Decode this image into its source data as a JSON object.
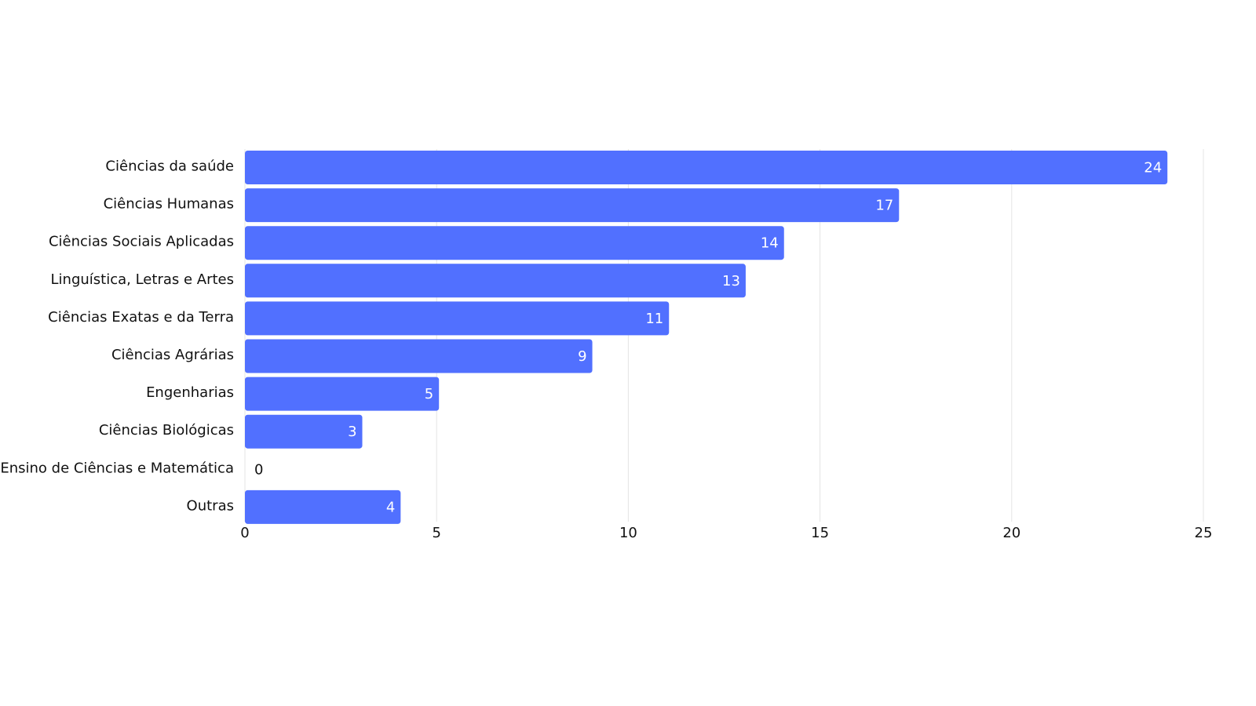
{
  "chart_data": {
    "type": "hbar",
    "categories": [
      "Ciências da saúde",
      "Ciências Humanas",
      "Ciências Sociais Aplicadas",
      "Linguística, Letras e Artes",
      "Ciências Exatas e da Terra",
      "Ciências Agrárias",
      "Engenharias",
      "Ciências Biológicas",
      "Ensino de Ciências e Matemática",
      "Outras"
    ],
    "values": [
      24,
      17,
      14,
      13,
      11,
      9,
      5,
      3,
      0,
      4
    ],
    "color": "#5170ff",
    "xlim": [
      0,
      25
    ],
    "xticks": [
      0,
      5,
      10,
      15,
      20,
      25
    ],
    "grid": true
  }
}
